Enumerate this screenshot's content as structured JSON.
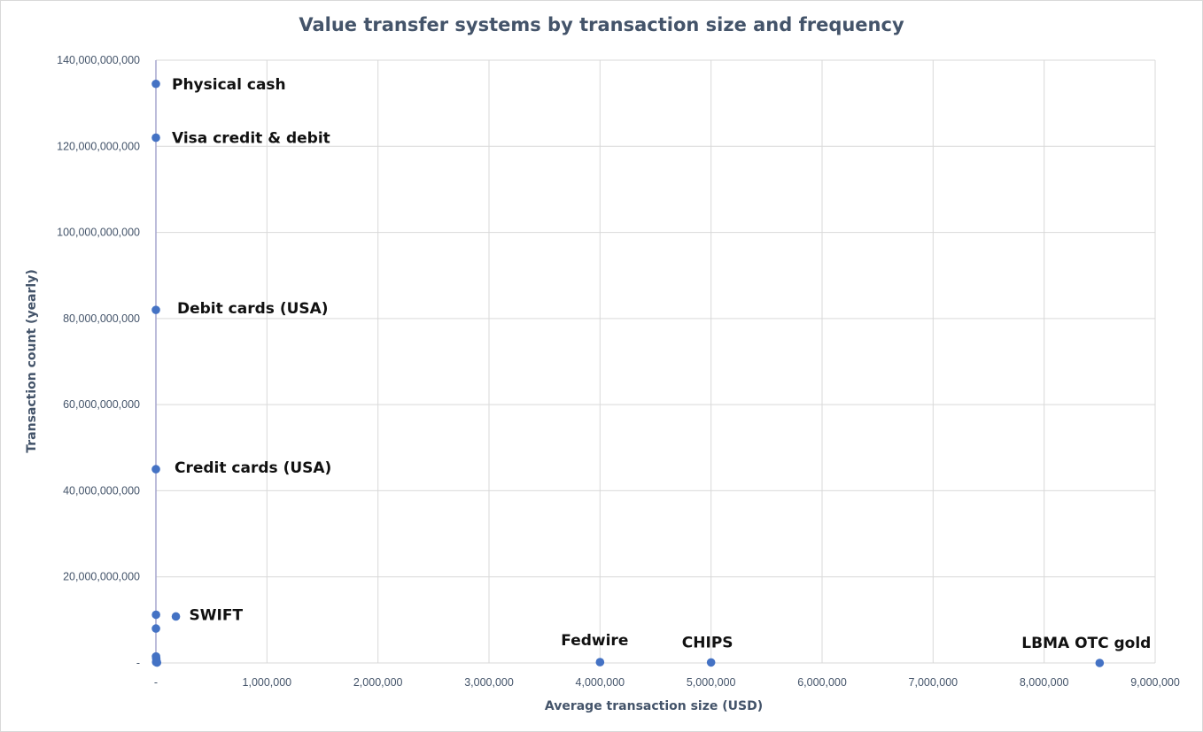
{
  "chart_data": {
    "type": "scatter",
    "title": "Value transfer systems by transaction size and frequency",
    "xlabel": "Average transaction size (USD)",
    "ylabel": "Transaction count (yearly)",
    "xlim": [
      0,
      9000000
    ],
    "ylim": [
      0,
      140000000000
    ],
    "x_ticks": [
      0,
      1000000,
      2000000,
      3000000,
      4000000,
      5000000,
      6000000,
      7000000,
      8000000,
      9000000
    ],
    "x_tick_labels": [
      "-",
      "1,000,000",
      "2,000,000",
      "3,000,000",
      "4,000,000",
      "5,000,000",
      "6,000,000",
      "7,000,000",
      "8,000,000",
      "9,000,000"
    ],
    "y_ticks": [
      0,
      20000000000,
      40000000000,
      60000000000,
      80000000000,
      100000000000,
      120000000000,
      140000000000
    ],
    "y_tick_labels": [
      "-",
      "20,000,000,000",
      "40,000,000,000",
      "60,000,000,000",
      "80,000,000,000",
      "100,000,000,000",
      "120,000,000,000",
      "140,000,000,000"
    ],
    "grid": true,
    "legend": "none",
    "marker_color": "#4472c4",
    "points": [
      {
        "label": "Physical cash",
        "x": 20,
        "y": 134500000000
      },
      {
        "label": "Visa credit & debit",
        "x": 90,
        "y": 122000000000
      },
      {
        "label": "Debit cards (USA)",
        "x": 40,
        "y": 82000000000
      },
      {
        "label": "Credit cards (USA)",
        "x": 90,
        "y": 45000000000
      },
      {
        "label": "",
        "x": 1000,
        "y": 11200000000
      },
      {
        "label": "SWIFT",
        "x": 180000,
        "y": 10800000000
      },
      {
        "label": "",
        "x": 500,
        "y": 8000000000
      },
      {
        "label": "",
        "x": 1000,
        "y": 1500000000
      },
      {
        "label": "",
        "x": 3000,
        "y": 1000000000
      },
      {
        "label": "",
        "x": 5000,
        "y": 500000000
      },
      {
        "label": "",
        "x": 2000,
        "y": 200000000
      },
      {
        "label": "",
        "x": 10000,
        "y": 100000000
      },
      {
        "label": "Fedwire",
        "x": 4000000,
        "y": 190000000
      },
      {
        "label": "CHIPS",
        "x": 5000000,
        "y": 120000000
      },
      {
        "label": "LBMA OTC gold",
        "x": 8500000,
        "y": 1000000
      }
    ]
  }
}
